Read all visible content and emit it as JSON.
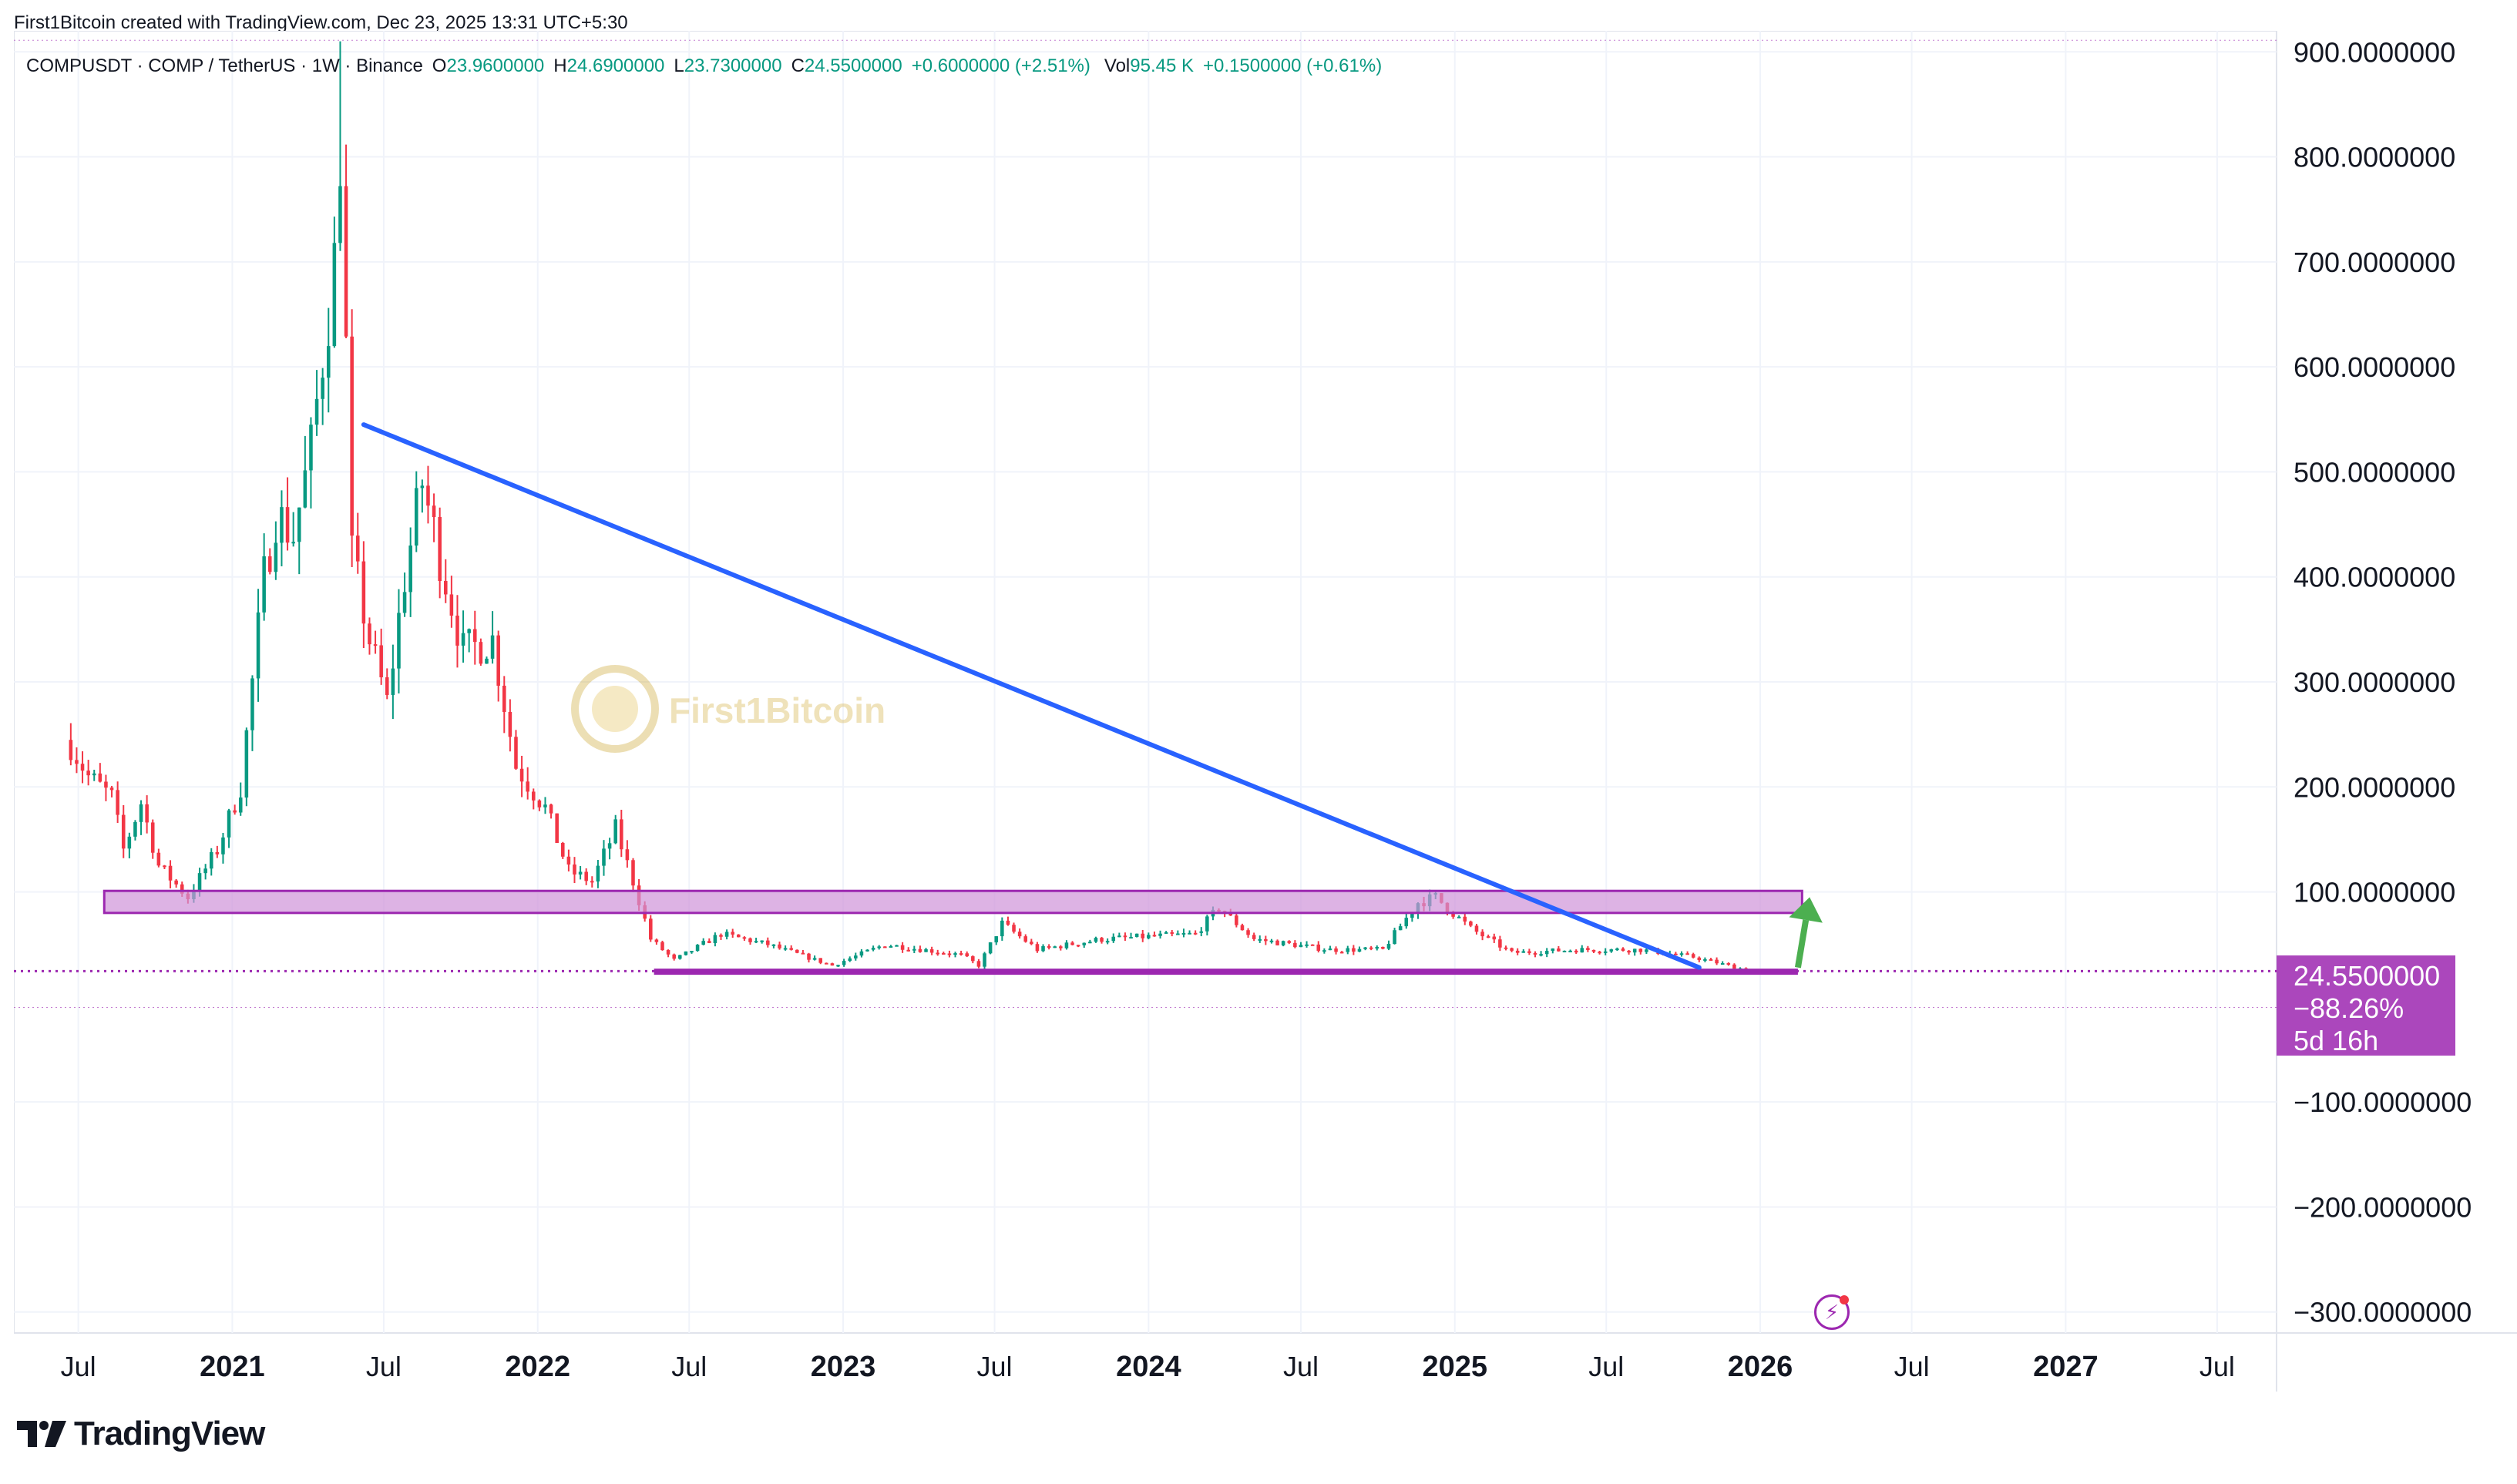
{
  "header": {
    "credit": "First1Bitcoin created with TradingView.com, Dec 23, 2025 13:31 UTC+5:30"
  },
  "legend": {
    "symbol": "COMPUSDT · COMP / TetherUS · 1W · Binance",
    "open_label": "O",
    "open": "23.9600000",
    "high_label": "H",
    "high": "24.6900000",
    "low_label": "L",
    "low": "23.7300000",
    "close_label": "C",
    "close": "24.5500000",
    "change": "+0.6000000 (+2.51%)",
    "vol_label": "Vol",
    "vol": "95.45 K",
    "vol_change": "+0.1500000 (+0.61%)"
  },
  "price_box": {
    "price": "24.5500000",
    "change_pct": "−88.26%",
    "countdown": "5d 16h"
  },
  "watermark": "First1Bitcoin",
  "brand": "TradingView",
  "colors": {
    "up": "#089981",
    "down": "#f23645",
    "trendline": "#2962ff",
    "zone": "#ce93d8",
    "zone_border": "#9c27b0",
    "support": "#9c27b0",
    "price_line": "#9c27b0",
    "arrow": "#4caf50",
    "price_box": "#ab47bc"
  },
  "chart_data": {
    "type": "candlestick",
    "interval": "1W",
    "y_axis": {
      "range": [
        -320,
        920
      ],
      "ticks": [
        "900.0000000",
        "800.0000000",
        "700.0000000",
        "600.0000000",
        "500.0000000",
        "400.0000000",
        "300.0000000",
        "200.0000000",
        "100.0000000",
        "−100.0000000",
        "−200.0000000",
        "−300.0000000"
      ],
      "tick_values": [
        900,
        800,
        700,
        600,
        500,
        400,
        300,
        200,
        100,
        -100,
        -200,
        -300
      ]
    },
    "x_axis": {
      "range": [
        "2020-04-15",
        "2027-09-10"
      ],
      "ticks": [
        {
          "label": "Jul",
          "date": "2020-07-01",
          "bold": false
        },
        {
          "label": "2021",
          "date": "2021-01-01",
          "bold": true
        },
        {
          "label": "Jul",
          "date": "2021-07-01",
          "bold": false
        },
        {
          "label": "2022",
          "date": "2022-01-01",
          "bold": true
        },
        {
          "label": "Jul",
          "date": "2022-07-01",
          "bold": false
        },
        {
          "label": "2023",
          "date": "2023-01-01",
          "bold": true
        },
        {
          "label": "Jul",
          "date": "2023-07-01",
          "bold": false
        },
        {
          "label": "2024",
          "date": "2024-01-01",
          "bold": true
        },
        {
          "label": "Jul",
          "date": "2024-07-01",
          "bold": false
        },
        {
          "label": "2025",
          "date": "2025-01-01",
          "bold": true
        },
        {
          "label": "Jul",
          "date": "2025-07-01",
          "bold": false
        },
        {
          "label": "2026",
          "date": "2026-01-01",
          "bold": true
        },
        {
          "label": "Jul",
          "date": "2026-07-01",
          "bold": false
        },
        {
          "label": "2027",
          "date": "2027-01-01",
          "bold": true
        },
        {
          "label": "Jul",
          "date": "2027-07-01",
          "bold": false
        }
      ]
    },
    "series": [
      {
        "anchors": [
          {
            "date": "2020-06-22",
            "close": 240
          },
          {
            "date": "2020-07-13",
            "close": 210
          },
          {
            "date": "2020-08-10",
            "close": 190
          },
          {
            "date": "2020-08-24",
            "close": 140
          },
          {
            "date": "2020-09-14",
            "close": 185
          },
          {
            "date": "2020-10-05",
            "close": 125
          },
          {
            "date": "2020-11-09",
            "close": 95
          },
          {
            "date": "2020-12-14",
            "close": 140
          },
          {
            "date": "2021-01-11",
            "close": 200
          },
          {
            "date": "2021-02-08",
            "close": 400
          },
          {
            "date": "2021-02-22",
            "close": 460
          },
          {
            "date": "2021-03-15",
            "close": 440
          },
          {
            "date": "2021-04-05",
            "close": 520
          },
          {
            "date": "2021-05-03",
            "close": 700
          },
          {
            "date": "2021-05-10",
            "close": 810
          },
          {
            "date": "2021-05-24",
            "close": 420
          },
          {
            "date": "2021-06-14",
            "close": 340
          },
          {
            "date": "2021-07-05",
            "close": 280
          },
          {
            "date": "2021-07-26",
            "close": 400
          },
          {
            "date": "2021-08-16",
            "close": 490
          },
          {
            "date": "2021-09-06",
            "close": 420
          },
          {
            "date": "2021-10-04",
            "close": 330
          },
          {
            "date": "2021-11-08",
            "close": 340
          },
          {
            "date": "2021-12-06",
            "close": 220
          },
          {
            "date": "2022-01-10",
            "close": 180
          },
          {
            "date": "2022-02-07",
            "close": 120
          },
          {
            "date": "2022-03-07",
            "close": 110
          },
          {
            "date": "2022-04-04",
            "close": 160
          },
          {
            "date": "2022-04-25",
            "close": 110
          },
          {
            "date": "2022-05-16",
            "close": 55
          },
          {
            "date": "2022-06-13",
            "close": 35
          },
          {
            "date": "2022-08-08",
            "close": 60
          },
          {
            "date": "2022-10-03",
            "close": 50
          },
          {
            "date": "2022-12-19",
            "close": 30
          },
          {
            "date": "2023-02-20",
            "close": 50
          },
          {
            "date": "2023-05-22",
            "close": 40
          },
          {
            "date": "2023-06-12",
            "close": 30
          },
          {
            "date": "2023-07-10",
            "close": 70
          },
          {
            "date": "2023-08-21",
            "close": 45
          },
          {
            "date": "2023-11-06",
            "close": 55
          },
          {
            "date": "2024-02-26",
            "close": 60
          },
          {
            "date": "2024-03-25",
            "close": 85
          },
          {
            "date": "2024-05-06",
            "close": 55
          },
          {
            "date": "2024-08-05",
            "close": 45
          },
          {
            "date": "2024-10-07",
            "close": 45
          },
          {
            "date": "2024-11-18",
            "close": 90
          },
          {
            "date": "2024-12-09",
            "close": 95
          },
          {
            "date": "2025-01-20",
            "close": 65
          },
          {
            "date": "2025-03-10",
            "close": 42
          },
          {
            "date": "2025-05-26",
            "close": 45
          },
          {
            "date": "2025-08-11",
            "close": 45
          },
          {
            "date": "2025-10-13",
            "close": 38
          },
          {
            "date": "2025-12-22",
            "close": 24.55
          }
        ]
      }
    ],
    "drawings": {
      "trendline": {
        "from": {
          "date": "2021-06-07",
          "value": 545
        },
        "to": {
          "date": "2025-10-20",
          "value": 28
        }
      },
      "resistance_zone": {
        "from_date": "2020-08-01",
        "to_date": "2026-02-20",
        "low": 80,
        "high": 101
      },
      "support_line": {
        "from_date": "2022-05-20",
        "to_date": "2026-02-15",
        "value": 24
      },
      "arrow": {
        "from": {
          "date": "2026-02-15",
          "value": 28
        },
        "to": {
          "date": "2026-03-01",
          "value": 95
        }
      },
      "last_price_line": 24.55
    }
  }
}
